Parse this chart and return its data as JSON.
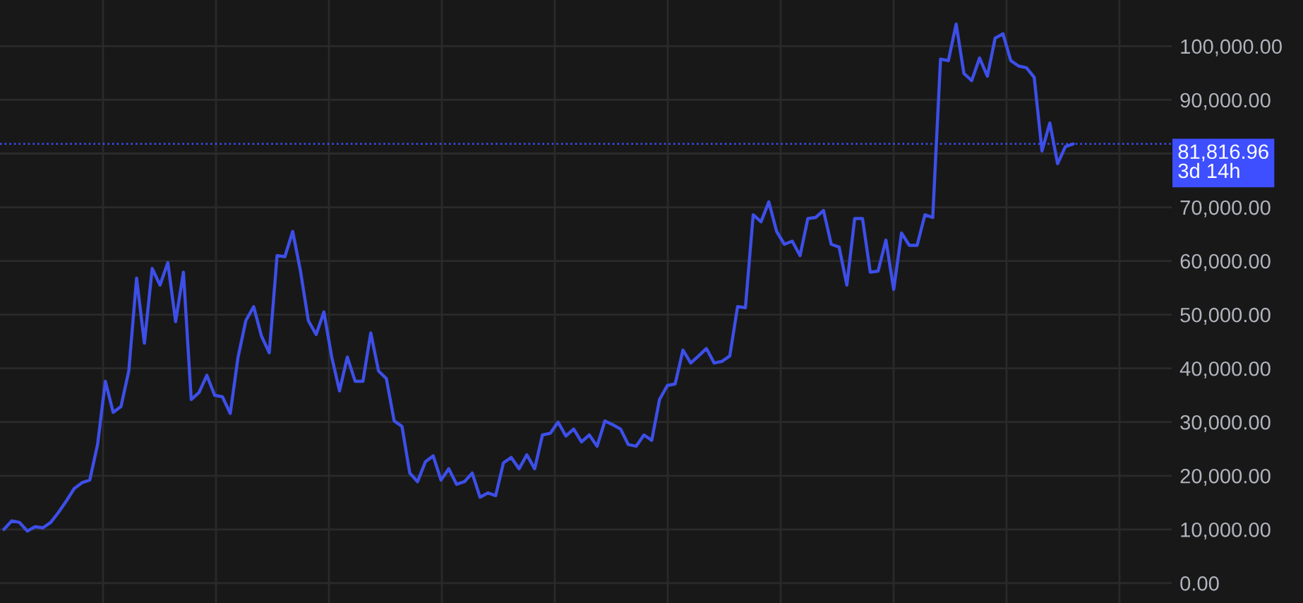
{
  "chart_data": {
    "type": "line",
    "categories": [
      null,
      null,
      null,
      null,
      null,
      null,
      null,
      null,
      null,
      null,
      null,
      null,
      null,
      null,
      null,
      null,
      null,
      null,
      null,
      null,
      null,
      null,
      null,
      null,
      null,
      null,
      null,
      null,
      null,
      null,
      null,
      null,
      null,
      null,
      null,
      null,
      null,
      null,
      null,
      null,
      null,
      null,
      null,
      null,
      null,
      null,
      null,
      null,
      null,
      null,
      null,
      null,
      null,
      null,
      null,
      null,
      null,
      null,
      null,
      null,
      null,
      null,
      null,
      null,
      null,
      null,
      null,
      null,
      null,
      null,
      null,
      null,
      null,
      null,
      null,
      null,
      null,
      null,
      null,
      null,
      null,
      null,
      null,
      null,
      null,
      null,
      null,
      null,
      null,
      null,
      null,
      null,
      null,
      null,
      null,
      null,
      null,
      null,
      null,
      null,
      null,
      null,
      null,
      null,
      null,
      null,
      null,
      null,
      null,
      null,
      null,
      null,
      null,
      null,
      null,
      null,
      null,
      null,
      null,
      null,
      null,
      null,
      null,
      null,
      null,
      null,
      null,
      null,
      null,
      null,
      null,
      null,
      null,
      null,
      null,
      null,
      null,
      null
    ],
    "series": [
      {
        "color": "#3d4fe8",
        "values": [
          10000,
          11600,
          11300,
          9700,
          10500,
          10300,
          11300,
          13200,
          15300,
          17600,
          18700,
          19200,
          25800,
          37600,
          31800,
          32900,
          39500,
          56800,
          44700,
          58600,
          55500,
          59700,
          48700,
          57900,
          34200,
          35500,
          38700,
          35000,
          34700,
          31600,
          42100,
          48900,
          51500,
          46000,
          42900,
          61000,
          60800,
          65500,
          58100,
          48900,
          46300,
          50500,
          42100,
          35800,
          42100,
          37600,
          37600,
          46600,
          39500,
          38100,
          30200,
          29200,
          20500,
          18900,
          22600,
          23700,
          19200,
          21300,
          18400,
          18900,
          20500,
          16000,
          16800,
          16300,
          22400,
          23400,
          21300,
          23900,
          21300,
          27600,
          27900,
          30000,
          27400,
          28700,
          26300,
          27600,
          25500,
          30200,
          29500,
          28700,
          25800,
          25500,
          27600,
          26600,
          34200,
          36800,
          37100,
          43400,
          41000,
          42300,
          43700,
          41000,
          41300,
          42300,
          51500,
          51300,
          68600,
          67300,
          71000,
          65500,
          63100,
          63700,
          61000,
          67900,
          68100,
          69400,
          63100,
          62600,
          55500,
          67900,
          67900,
          57900,
          58100,
          63900,
          54700,
          65200,
          62900,
          62900,
          68600,
          68100,
          97600,
          97300,
          104100,
          94900,
          93600,
          97800,
          94400,
          101500,
          102300,
          97300,
          96300,
          96000,
          94200,
          80500,
          85700,
          78100,
          81300,
          81800
        ]
      }
    ],
    "ylim": [
      -3700,
      108600
    ],
    "yticks": [
      {
        "value": 0,
        "label": "0.00"
      },
      {
        "value": 10000,
        "label": "10,000.00"
      },
      {
        "value": 20000,
        "label": "20,000.00"
      },
      {
        "value": 30000,
        "label": "30,000.00"
      },
      {
        "value": 40000,
        "label": "40,000.00"
      },
      {
        "value": 50000,
        "label": "50,000.00"
      },
      {
        "value": 60000,
        "label": "60,000.00"
      },
      {
        "value": 70000,
        "label": "70,000.00"
      },
      {
        "value": 80000,
        "label": null
      },
      {
        "value": 90000,
        "label": "90,000.00"
      },
      {
        "value": 100000,
        "label": "100,000.00"
      }
    ],
    "ref_lines": [
      {
        "axis": "y",
        "value": 81816.96,
        "label": "81,816.96",
        "color": "#3d4fff",
        "line_style": "dotted"
      }
    ],
    "annotations": [
      "3d 14h"
    ],
    "grid": true,
    "line_style": "solid",
    "marker": "none"
  }
}
